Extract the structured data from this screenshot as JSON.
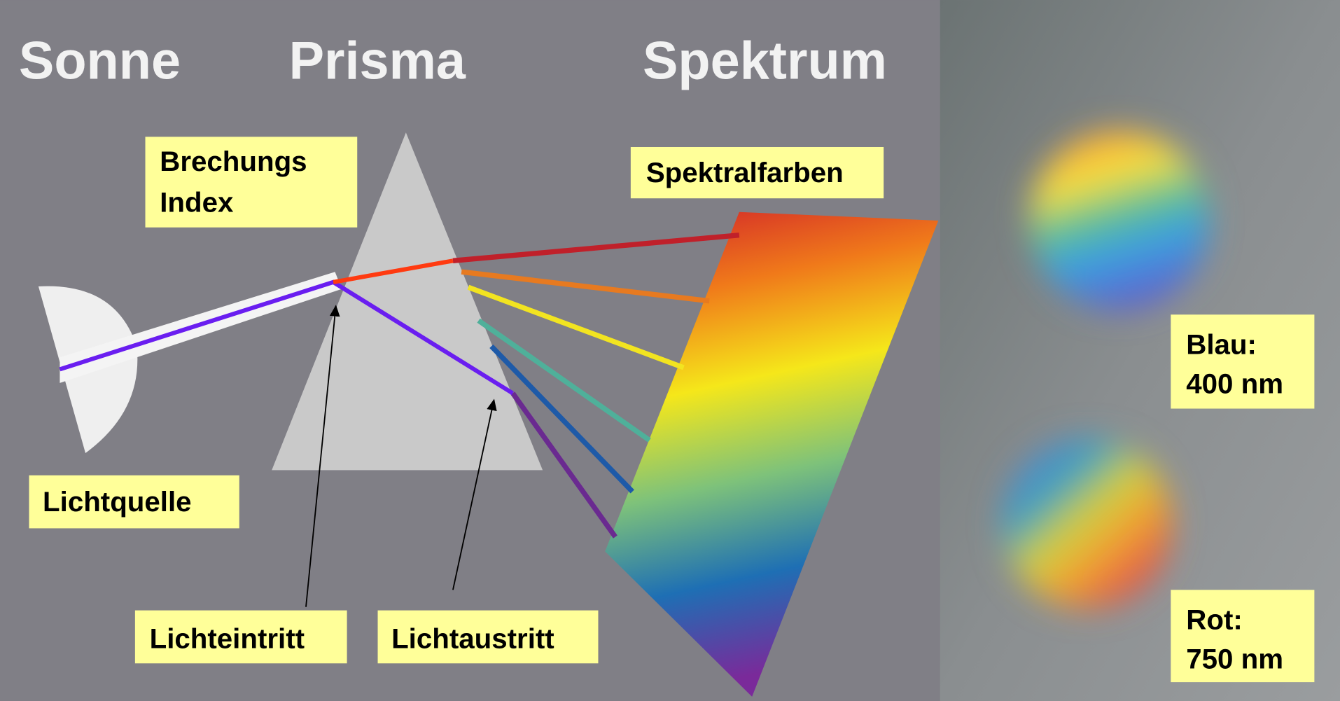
{
  "headings": [
    "Sonne",
    "Prisma",
    "Spektrum"
  ],
  "labels": {
    "refraction_index": [
      "Brechungs",
      "Index"
    ],
    "spectral_colors": "Spektralfarben",
    "light_source": "Lichtquelle",
    "light_entry": "Lichteintritt",
    "light_exit": "Lichtaustritt",
    "blue": [
      "Blau:",
      "400 nm"
    ],
    "red": [
      "Rot:",
      "750 nm"
    ]
  }
}
